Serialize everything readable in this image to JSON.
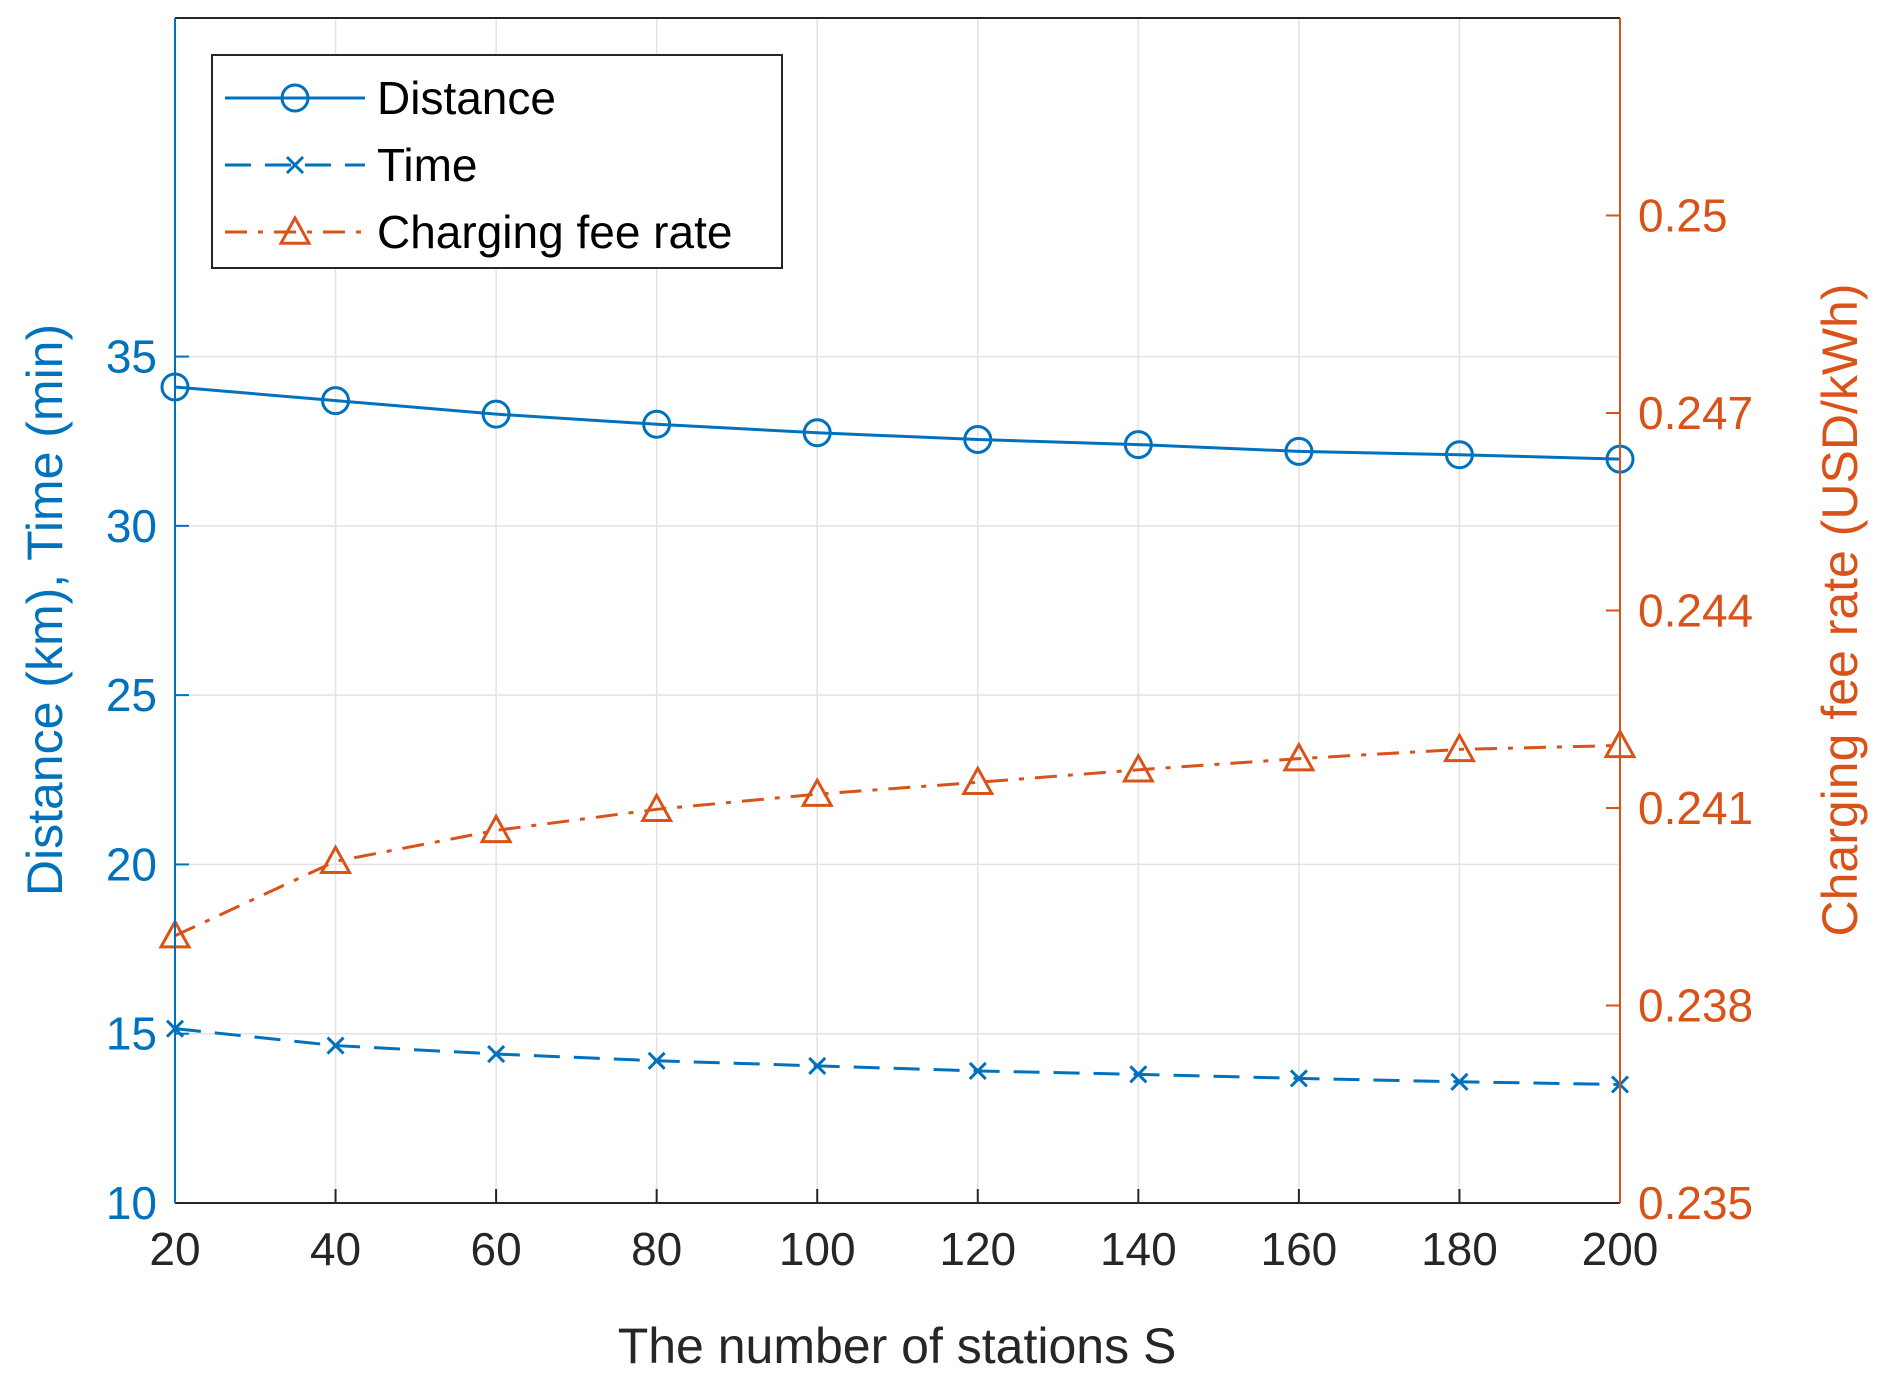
{
  "chart_data": {
    "type": "line",
    "xlabel": "The number of stations S",
    "ylabel_left": "Distance (km), Time (min)",
    "ylabel_right": "Charging fee rate (USD/kWh)",
    "x": [
      20,
      40,
      60,
      80,
      100,
      120,
      140,
      160,
      180,
      200
    ],
    "xlim": [
      20,
      200
    ],
    "xticks": [
      "20",
      "40",
      "60",
      "80",
      "100",
      "120",
      "140",
      "160",
      "180",
      "200"
    ],
    "ylim_left": [
      10,
      45
    ],
    "yticks_left": [
      "10",
      "15",
      "20",
      "25",
      "30",
      "35"
    ],
    "ylim_right": [
      0.235,
      0.253
    ],
    "yticks_right": [
      "0.235",
      "0.238",
      "0.241",
      "0.244",
      "0.247",
      "0.25"
    ],
    "grid": true,
    "legend_position": "top-left",
    "series": [
      {
        "name": "Distance",
        "axis": "left",
        "color": "#0072BD",
        "marker": "circle",
        "line_style": "solid",
        "values": [
          34.1,
          33.7,
          33.3,
          33.0,
          32.75,
          32.55,
          32.4,
          32.2,
          32.1,
          31.97
        ]
      },
      {
        "name": "Time",
        "axis": "left",
        "color": "#0072BD",
        "marker": "x",
        "line_style": "dashed",
        "values": [
          15.15,
          14.65,
          14.4,
          14.2,
          14.05,
          13.9,
          13.8,
          13.68,
          13.58,
          13.5
        ]
      },
      {
        "name": "Charging fee rate",
        "axis": "right",
        "color": "#D95319",
        "marker": "triangle",
        "line_style": "dashdot",
        "values": [
          0.23906,
          0.24019,
          0.24066,
          0.24098,
          0.24121,
          0.24139,
          0.24158,
          0.24175,
          0.24189,
          0.24195
        ]
      }
    ]
  }
}
